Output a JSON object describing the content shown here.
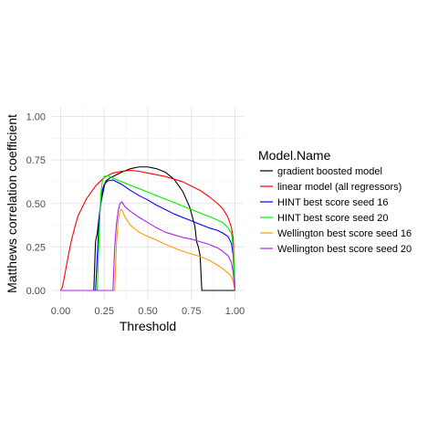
{
  "chart_data": {
    "type": "line",
    "xlabel": "Threshold",
    "ylabel": "Matthews correlation coefficient",
    "xlim": [
      0,
      1
    ],
    "ylim": [
      0,
      1
    ],
    "x_ticks": [
      0.0,
      0.25,
      0.5,
      0.75,
      1.0
    ],
    "x_tick_labels": [
      "0.00",
      "0.25",
      "0.50",
      "0.75",
      "1.00"
    ],
    "y_ticks": [
      0.0,
      0.25,
      0.5,
      0.75,
      1.0
    ],
    "y_tick_labels": [
      "0.00",
      "0.25",
      "0.50",
      "0.75",
      "1.00"
    ],
    "grid": true,
    "legend": {
      "title": "Model.Name",
      "position": "right"
    },
    "series": [
      {
        "name": "gradient boosted model",
        "color": "#000000",
        "points": [
          [
            0.0,
            0
          ],
          [
            0.19,
            0
          ],
          [
            0.2,
            0.28
          ],
          [
            0.21,
            0.33
          ],
          [
            0.22,
            0.42
          ],
          [
            0.23,
            0.5
          ],
          [
            0.24,
            0.55
          ],
          [
            0.25,
            0.6
          ],
          [
            0.26,
            0.63
          ],
          [
            0.28,
            0.645
          ],
          [
            0.3,
            0.655
          ],
          [
            0.35,
            0.68
          ],
          [
            0.4,
            0.7
          ],
          [
            0.45,
            0.71
          ],
          [
            0.5,
            0.71
          ],
          [
            0.55,
            0.7
          ],
          [
            0.6,
            0.68
          ],
          [
            0.65,
            0.64
          ],
          [
            0.7,
            0.57
          ],
          [
            0.74,
            0.48
          ],
          [
            0.77,
            0.37
          ],
          [
            0.78,
            0.28
          ],
          [
            0.79,
            0.25
          ],
          [
            0.8,
            0.2
          ],
          [
            0.81,
            0.0
          ],
          [
            1.0,
            0.0
          ]
        ]
      },
      {
        "name": "linear model (all regressors)",
        "color": "#ff0000",
        "points": [
          [
            0.0,
            0
          ],
          [
            0.01,
            0.02
          ],
          [
            0.02,
            0.07
          ],
          [
            0.04,
            0.18
          ],
          [
            0.06,
            0.28
          ],
          [
            0.08,
            0.36
          ],
          [
            0.1,
            0.43
          ],
          [
            0.15,
            0.53
          ],
          [
            0.2,
            0.6
          ],
          [
            0.25,
            0.65
          ],
          [
            0.3,
            0.675
          ],
          [
            0.35,
            0.685
          ],
          [
            0.4,
            0.69
          ],
          [
            0.45,
            0.685
          ],
          [
            0.5,
            0.675
          ],
          [
            0.55,
            0.665
          ],
          [
            0.6,
            0.655
          ],
          [
            0.65,
            0.64
          ],
          [
            0.7,
            0.625
          ],
          [
            0.75,
            0.6
          ],
          [
            0.8,
            0.575
          ],
          [
            0.85,
            0.54
          ],
          [
            0.9,
            0.5
          ],
          [
            0.93,
            0.47
          ],
          [
            0.96,
            0.42
          ],
          [
            0.98,
            0.36
          ],
          [
            0.99,
            0.3
          ],
          [
            1.0,
            0.0
          ]
        ]
      },
      {
        "name": "HINT best score seed 16",
        "color": "#0000ff",
        "points": [
          [
            0.0,
            0
          ],
          [
            0.2,
            0
          ],
          [
            0.21,
            0.2
          ],
          [
            0.22,
            0.4
          ],
          [
            0.23,
            0.5
          ],
          [
            0.24,
            0.58
          ],
          [
            0.25,
            0.61
          ],
          [
            0.27,
            0.63
          ],
          [
            0.3,
            0.635
          ],
          [
            0.35,
            0.61
          ],
          [
            0.4,
            0.575
          ],
          [
            0.45,
            0.545
          ],
          [
            0.5,
            0.52
          ],
          [
            0.55,
            0.49
          ],
          [
            0.6,
            0.465
          ],
          [
            0.65,
            0.44
          ],
          [
            0.7,
            0.42
          ],
          [
            0.75,
            0.4
          ],
          [
            0.8,
            0.38
          ],
          [
            0.85,
            0.36
          ],
          [
            0.9,
            0.345
          ],
          [
            0.93,
            0.33
          ],
          [
            0.96,
            0.31
          ],
          [
            0.98,
            0.27
          ],
          [
            0.99,
            0.2
          ],
          [
            1.0,
            0.0
          ]
        ]
      },
      {
        "name": "HINT best score seed 20",
        "color": "#00ee00",
        "points": [
          [
            0.0,
            0
          ],
          [
            0.21,
            0
          ],
          [
            0.22,
            0.3
          ],
          [
            0.23,
            0.55
          ],
          [
            0.24,
            0.635
          ],
          [
            0.25,
            0.655
          ],
          [
            0.27,
            0.66
          ],
          [
            0.3,
            0.645
          ],
          [
            0.35,
            0.625
          ],
          [
            0.4,
            0.605
          ],
          [
            0.45,
            0.585
          ],
          [
            0.5,
            0.565
          ],
          [
            0.55,
            0.545
          ],
          [
            0.6,
            0.525
          ],
          [
            0.65,
            0.505
          ],
          [
            0.7,
            0.485
          ],
          [
            0.75,
            0.465
          ],
          [
            0.8,
            0.445
          ],
          [
            0.85,
            0.425
          ],
          [
            0.9,
            0.405
          ],
          [
            0.93,
            0.39
          ],
          [
            0.96,
            0.36
          ],
          [
            0.98,
            0.33
          ],
          [
            0.99,
            0.25
          ],
          [
            1.0,
            0.0
          ]
        ]
      },
      {
        "name": "Wellington best score seed 16",
        "color": "#ff9900",
        "points": [
          [
            0.0,
            0
          ],
          [
            0.31,
            0
          ],
          [
            0.32,
            0.27
          ],
          [
            0.33,
            0.4
          ],
          [
            0.34,
            0.46
          ],
          [
            0.35,
            0.465
          ],
          [
            0.37,
            0.42
          ],
          [
            0.4,
            0.375
          ],
          [
            0.45,
            0.335
          ],
          [
            0.5,
            0.31
          ],
          [
            0.55,
            0.29
          ],
          [
            0.6,
            0.265
          ],
          [
            0.65,
            0.245
          ],
          [
            0.7,
            0.225
          ],
          [
            0.75,
            0.21
          ],
          [
            0.8,
            0.195
          ],
          [
            0.85,
            0.175
          ],
          [
            0.9,
            0.145
          ],
          [
            0.93,
            0.125
          ],
          [
            0.96,
            0.1
          ],
          [
            0.98,
            0.08
          ],
          [
            0.99,
            0.05
          ],
          [
            1.0,
            0.0
          ]
        ]
      },
      {
        "name": "Wellington best score seed 20",
        "color": "#aa22ee",
        "points": [
          [
            0.0,
            0
          ],
          [
            0.3,
            0
          ],
          [
            0.31,
            0.25
          ],
          [
            0.32,
            0.38
          ],
          [
            0.33,
            0.46
          ],
          [
            0.34,
            0.5
          ],
          [
            0.35,
            0.51
          ],
          [
            0.37,
            0.48
          ],
          [
            0.4,
            0.455
          ],
          [
            0.45,
            0.42
          ],
          [
            0.5,
            0.39
          ],
          [
            0.55,
            0.36
          ],
          [
            0.6,
            0.335
          ],
          [
            0.65,
            0.32
          ],
          [
            0.7,
            0.305
          ],
          [
            0.75,
            0.295
          ],
          [
            0.8,
            0.28
          ],
          [
            0.85,
            0.265
          ],
          [
            0.9,
            0.245
          ],
          [
            0.93,
            0.225
          ],
          [
            0.96,
            0.2
          ],
          [
            0.98,
            0.16
          ],
          [
            0.99,
            0.1
          ],
          [
            1.0,
            0.0
          ]
        ]
      }
    ]
  }
}
